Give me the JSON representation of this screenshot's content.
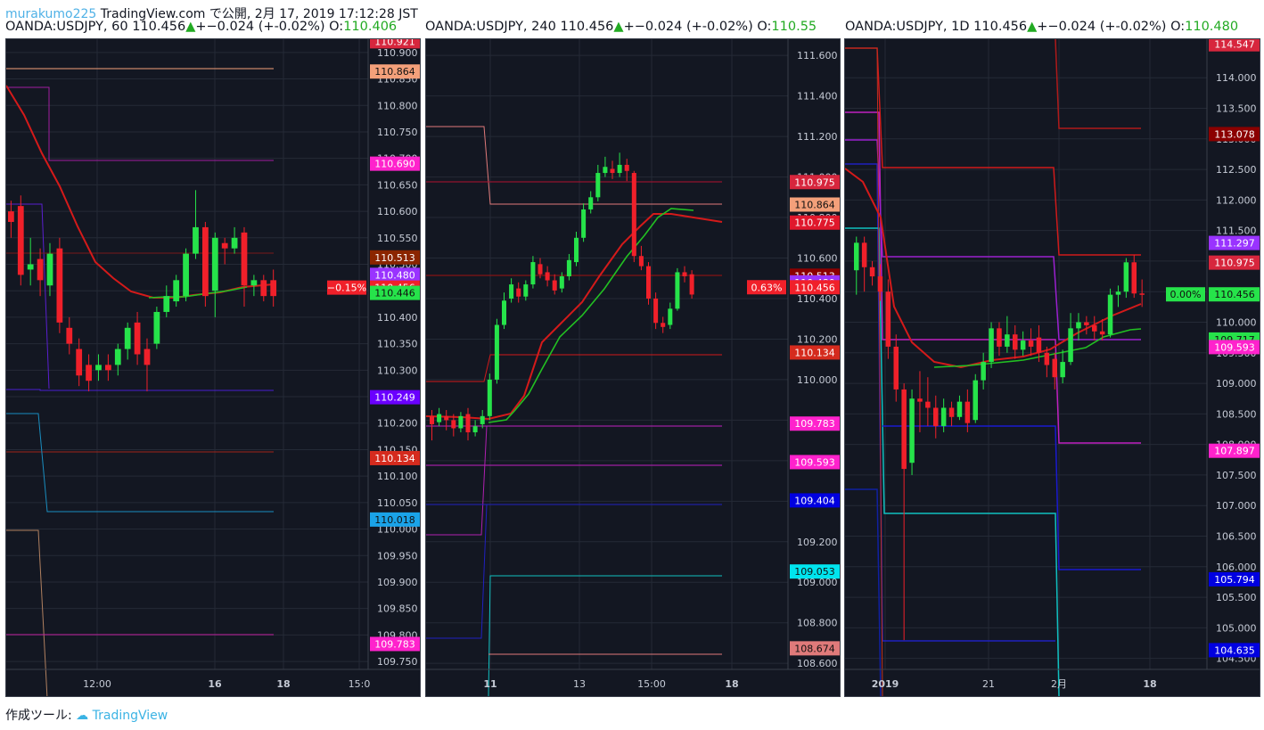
{
  "header": {
    "user": "murakumo225",
    "published": "TradingView.com で公開, 2月 17, 2019 17:12:28 JST"
  },
  "footer": {
    "made_with": "作成ツール:",
    "brand": "TradingView"
  },
  "colors": {
    "bg": "#131722",
    "up": "#26e34a",
    "down": "#f0202a",
    "grid": "#242a36",
    "text": "#c6cbd6"
  },
  "panels": [
    {
      "symbol": "OANDA:USDJPY, 60",
      "price": "110.456",
      "change": "+−0.024 (+-0.02%)",
      "open_label": "O:",
      "open_value": "110.406",
      "x_labels": [
        "12:00",
        "16",
        "18",
        "15:0"
      ],
      "y_ticks": [
        "110.900",
        "110.850",
        "110.800",
        "110.750",
        "110.700",
        "110.650",
        "110.600",
        "110.550",
        "110.500",
        "110.450",
        "110.400",
        "110.350",
        "110.300",
        "110.250",
        "110.200",
        "110.150",
        "110.100",
        "110.050",
        "110.000",
        "109.950",
        "109.900",
        "109.850",
        "109.800",
        "109.750"
      ],
      "price_tags": [
        {
          "text": "110.921",
          "color": "#d7263d"
        },
        {
          "text": "110.864",
          "color": "#f4a07a"
        },
        {
          "text": "110.690",
          "color": "#ff22cc"
        },
        {
          "text": "110.513",
          "color": "#8b2500"
        },
        {
          "text": "110.480",
          "color": "#9933ff"
        },
        {
          "text": "110.456",
          "color": "#f0202a"
        },
        {
          "text": "110.446",
          "color": "#26e34a"
        },
        {
          "text": "110.249",
          "color": "#6a00ff"
        },
        {
          "text": "110.134",
          "color": "#d52b1e"
        },
        {
          "text": "110.018",
          "color": "#1aa3e8"
        },
        {
          "text": "109.783",
          "color": "#ff22cc"
        }
      ],
      "pct_tag": "−0.15%",
      "candles": [
        {
          "o": 110.6,
          "c": 110.58,
          "h": 110.62,
          "l": 110.55
        },
        {
          "o": 110.61,
          "c": 110.48,
          "h": 110.63,
          "l": 110.46
        },
        {
          "o": 110.49,
          "c": 110.5,
          "h": 110.55,
          "l": 110.46
        },
        {
          "o": 110.51,
          "c": 110.47,
          "h": 110.53,
          "l": 110.44
        },
        {
          "o": 110.46,
          "c": 110.52,
          "h": 110.54,
          "l": 110.44
        },
        {
          "o": 110.53,
          "c": 110.39,
          "h": 110.55,
          "l": 110.37
        },
        {
          "o": 110.38,
          "c": 110.35,
          "h": 110.4,
          "l": 110.33
        },
        {
          "o": 110.34,
          "c": 110.29,
          "h": 110.36,
          "l": 110.27
        },
        {
          "o": 110.31,
          "c": 110.28,
          "h": 110.33,
          "l": 110.26
        },
        {
          "o": 110.3,
          "c": 110.31,
          "h": 110.33,
          "l": 110.28
        },
        {
          "o": 110.31,
          "c": 110.3,
          "h": 110.33,
          "l": 110.28
        },
        {
          "o": 110.31,
          "c": 110.34,
          "h": 110.35,
          "l": 110.29
        },
        {
          "o": 110.34,
          "c": 110.38,
          "h": 110.39,
          "l": 110.32
        },
        {
          "o": 110.39,
          "c": 110.33,
          "h": 110.41,
          "l": 110.31
        },
        {
          "o": 110.34,
          "c": 110.31,
          "h": 110.36,
          "l": 110.26
        },
        {
          "o": 110.35,
          "c": 110.41,
          "h": 110.42,
          "l": 110.34
        },
        {
          "o": 110.41,
          "c": 110.44,
          "h": 110.46,
          "l": 110.4
        },
        {
          "o": 110.43,
          "c": 110.47,
          "h": 110.48,
          "l": 110.42
        },
        {
          "o": 110.44,
          "c": 110.52,
          "h": 110.53,
          "l": 110.43
        },
        {
          "o": 110.52,
          "c": 110.57,
          "h": 110.64,
          "l": 110.51
        },
        {
          "o": 110.57,
          "c": 110.44,
          "h": 110.58,
          "l": 110.42
        },
        {
          "o": 110.45,
          "c": 110.55,
          "h": 110.56,
          "l": 110.4
        },
        {
          "o": 110.54,
          "c": 110.53,
          "h": 110.55,
          "l": 110.5
        },
        {
          "o": 110.53,
          "c": 110.55,
          "h": 110.57,
          "l": 110.52
        },
        {
          "o": 110.56,
          "c": 110.46,
          "h": 110.57,
          "l": 110.42
        },
        {
          "o": 110.46,
          "c": 110.47,
          "h": 110.48,
          "l": 110.44
        },
        {
          "o": 110.47,
          "c": 110.44,
          "h": 110.48,
          "l": 110.43
        },
        {
          "o": 110.47,
          "c": 110.44,
          "h": 110.49,
          "l": 110.42
        }
      ]
    },
    {
      "symbol": "OANDA:USDJPY, 240",
      "price": "110.456",
      "change": "+−0.024 (+-0.02%)",
      "open_label": "O:",
      "open_value": "110.55",
      "x_labels": [
        "11",
        "13",
        "15:00",
        "18"
      ],
      "y_ticks": [
        "111.600",
        "111.400",
        "111.200",
        "111.000",
        "110.800",
        "110.600",
        "110.400",
        "110.200",
        "110.000",
        "109.800",
        "109.600",
        "109.400",
        "109.200",
        "109.000",
        "108.800",
        "108.600"
      ],
      "price_tags": [
        {
          "text": "110.975",
          "color": "#d7263d"
        },
        {
          "text": "110.864",
          "color": "#f4a07a"
        },
        {
          "text": "110.775",
          "color": "#e0182c"
        },
        {
          "text": "110.513",
          "color": "#8b0000"
        },
        {
          "text": "110.480",
          "color": "#9933ff"
        },
        {
          "text": "110.456",
          "color": "#f0202a"
        },
        {
          "text": "110.134",
          "color": "#d52b1e"
        },
        {
          "text": "109.783",
          "color": "#ff22cc"
        },
        {
          "text": "109.593",
          "color": "#ff22cc"
        },
        {
          "text": "109.404",
          "color": "#0000e0"
        },
        {
          "text": "109.053",
          "color": "#00e5ee"
        },
        {
          "text": "108.674",
          "color": "#e07a7a"
        }
      ],
      "pct_tag": "0.63%",
      "candles": [
        {
          "o": 109.82,
          "c": 109.78,
          "h": 109.85,
          "l": 109.7
        },
        {
          "o": 109.79,
          "c": 109.83,
          "h": 109.86,
          "l": 109.77
        },
        {
          "o": 109.82,
          "c": 109.8,
          "h": 109.85,
          "l": 109.75
        },
        {
          "o": 109.8,
          "c": 109.76,
          "h": 109.83,
          "l": 109.72
        },
        {
          "o": 109.76,
          "c": 109.82,
          "h": 109.84,
          "l": 109.74
        },
        {
          "o": 109.83,
          "c": 109.74,
          "h": 109.86,
          "l": 109.7
        },
        {
          "o": 109.74,
          "c": 109.77,
          "h": 109.8,
          "l": 109.72
        },
        {
          "o": 109.78,
          "c": 109.82,
          "h": 109.85,
          "l": 109.76
        },
        {
          "o": 109.82,
          "c": 110.0,
          "h": 110.03,
          "l": 109.8
        },
        {
          "o": 110.0,
          "c": 110.27,
          "h": 110.3,
          "l": 109.98
        },
        {
          "o": 110.27,
          "c": 110.39,
          "h": 110.43,
          "l": 110.25
        },
        {
          "o": 110.4,
          "c": 110.47,
          "h": 110.5,
          "l": 110.38
        },
        {
          "o": 110.45,
          "c": 110.41,
          "h": 110.48,
          "l": 110.38
        },
        {
          "o": 110.41,
          "c": 110.47,
          "h": 110.49,
          "l": 110.39
        },
        {
          "o": 110.47,
          "c": 110.58,
          "h": 110.61,
          "l": 110.45
        },
        {
          "o": 110.57,
          "c": 110.52,
          "h": 110.6,
          "l": 110.5
        },
        {
          "o": 110.53,
          "c": 110.49,
          "h": 110.56,
          "l": 110.46
        },
        {
          "o": 110.49,
          "c": 110.44,
          "h": 110.52,
          "l": 110.42
        },
        {
          "o": 110.45,
          "c": 110.51,
          "h": 110.53,
          "l": 110.43
        },
        {
          "o": 110.51,
          "c": 110.59,
          "h": 110.62,
          "l": 110.49
        },
        {
          "o": 110.58,
          "c": 110.7,
          "h": 110.73,
          "l": 110.56
        },
        {
          "o": 110.7,
          "c": 110.84,
          "h": 110.87,
          "l": 110.68
        },
        {
          "o": 110.84,
          "c": 110.9,
          "h": 110.93,
          "l": 110.82
        },
        {
          "o": 110.9,
          "c": 111.02,
          "h": 111.06,
          "l": 110.88
        },
        {
          "o": 111.02,
          "c": 111.05,
          "h": 111.1,
          "l": 111.0
        },
        {
          "o": 111.04,
          "c": 111.02,
          "h": 111.08,
          "l": 110.99
        },
        {
          "o": 111.02,
          "c": 111.06,
          "h": 111.12,
          "l": 111.0
        },
        {
          "o": 111.06,
          "c": 111.03,
          "h": 111.09,
          "l": 110.98
        },
        {
          "o": 111.02,
          "c": 110.61,
          "h": 111.03,
          "l": 110.58
        },
        {
          "o": 110.61,
          "c": 110.56,
          "h": 110.66,
          "l": 110.54
        },
        {
          "o": 110.56,
          "c": 110.4,
          "h": 110.58,
          "l": 110.37
        },
        {
          "o": 110.4,
          "c": 110.28,
          "h": 110.43,
          "l": 110.25
        },
        {
          "o": 110.28,
          "c": 110.26,
          "h": 110.31,
          "l": 110.23
        },
        {
          "o": 110.27,
          "c": 110.35,
          "h": 110.38,
          "l": 110.25
        },
        {
          "o": 110.35,
          "c": 110.53,
          "h": 110.55,
          "l": 110.34
        },
        {
          "o": 110.53,
          "c": 110.51,
          "h": 110.56,
          "l": 110.48
        },
        {
          "o": 110.52,
          "c": 110.42,
          "h": 110.54,
          "l": 110.4
        }
      ]
    },
    {
      "symbol": "OANDA:USDJPY, 1D",
      "price": "110.456",
      "change": "+−0.024 (+-0.02%)",
      "open_label": "O:",
      "open_value": "110.480",
      "x_labels": [
        "2019",
        "21",
        "2月",
        "18"
      ],
      "y_ticks": [
        "114.000",
        "113.500",
        "113.000",
        "112.500",
        "112.000",
        "111.500",
        "111.000",
        "110.500",
        "110.000",
        "109.500",
        "109.000",
        "108.500",
        "108.000",
        "107.500",
        "107.000",
        "106.500",
        "106.000",
        "105.500",
        "105.000",
        "104.500"
      ],
      "price_tags": [
        {
          "text": "114.547",
          "color": "#d7263d"
        },
        {
          "text": "113.078",
          "color": "#8b0000"
        },
        {
          "text": "111.297",
          "color": "#9933ff"
        },
        {
          "text": "110.975",
          "color": "#d7263d"
        },
        {
          "text": "110.456",
          "color": "#26e34a"
        },
        {
          "text": "109.717",
          "color": "#26e34a"
        },
        {
          "text": "109.593",
          "color": "#ff22cc"
        },
        {
          "text": "107.897",
          "color": "#ff22cc"
        },
        {
          "text": "105.794",
          "color": "#0000e0"
        },
        {
          "text": "104.635",
          "color": "#0000e0"
        }
      ],
      "pct_tag": "0.00%",
      "candles": [
        {
          "o": 110.85,
          "c": 111.3,
          "h": 111.4,
          "l": 110.45
        },
        {
          "o": 111.3,
          "c": 110.9,
          "h": 111.4,
          "l": 110.5
        },
        {
          "o": 110.9,
          "c": 110.75,
          "h": 111.0,
          "l": 110.6
        },
        {
          "o": 110.75,
          "c": 110.5,
          "h": 110.95,
          "l": 110.35
        },
        {
          "o": 110.5,
          "c": 109.6,
          "h": 110.7,
          "l": 109.4
        },
        {
          "o": 109.6,
          "c": 108.9,
          "h": 109.8,
          "l": 108.7
        },
        {
          "o": 108.9,
          "c": 107.6,
          "h": 109.0,
          "l": 104.8
        },
        {
          "o": 107.7,
          "c": 108.75,
          "h": 108.9,
          "l": 107.5
        },
        {
          "o": 108.75,
          "c": 108.7,
          "h": 109.2,
          "l": 108.2
        },
        {
          "o": 108.7,
          "c": 108.6,
          "h": 109.1,
          "l": 108.3
        },
        {
          "o": 108.6,
          "c": 108.3,
          "h": 108.8,
          "l": 108.1
        },
        {
          "o": 108.3,
          "c": 108.6,
          "h": 108.75,
          "l": 108.2
        },
        {
          "o": 108.6,
          "c": 108.45,
          "h": 108.7,
          "l": 108.3
        },
        {
          "o": 108.45,
          "c": 108.7,
          "h": 108.8,
          "l": 108.4
        },
        {
          "o": 108.7,
          "c": 108.35,
          "h": 108.9,
          "l": 108.2
        },
        {
          "o": 108.4,
          "c": 109.05,
          "h": 109.15,
          "l": 108.35
        },
        {
          "o": 109.05,
          "c": 109.35,
          "h": 109.5,
          "l": 108.9
        },
        {
          "o": 109.35,
          "c": 109.9,
          "h": 110.0,
          "l": 109.25
        },
        {
          "o": 109.9,
          "c": 109.6,
          "h": 110.0,
          "l": 109.45
        },
        {
          "o": 109.6,
          "c": 109.8,
          "h": 110.1,
          "l": 109.5
        },
        {
          "o": 109.8,
          "c": 109.55,
          "h": 109.95,
          "l": 109.4
        },
        {
          "o": 109.55,
          "c": 109.7,
          "h": 109.85,
          "l": 109.45
        },
        {
          "o": 109.7,
          "c": 109.6,
          "h": 109.9,
          "l": 109.45
        },
        {
          "o": 109.75,
          "c": 109.5,
          "h": 109.95,
          "l": 109.35
        },
        {
          "o": 109.5,
          "c": 109.3,
          "h": 109.6,
          "l": 109.1
        },
        {
          "o": 109.4,
          "c": 109.1,
          "h": 109.5,
          "l": 108.9
        },
        {
          "o": 109.1,
          "c": 109.35,
          "h": 109.55,
          "l": 109.0
        },
        {
          "o": 109.35,
          "c": 109.9,
          "h": 110.15,
          "l": 109.3
        },
        {
          "o": 109.9,
          "c": 110.0,
          "h": 110.15,
          "l": 109.7
        },
        {
          "o": 110.0,
          "c": 109.95,
          "h": 110.1,
          "l": 109.8
        },
        {
          "o": 109.95,
          "c": 109.85,
          "h": 110.1,
          "l": 109.7
        },
        {
          "o": 109.85,
          "c": 109.8,
          "h": 110.05,
          "l": 109.7
        },
        {
          "o": 109.8,
          "c": 110.45,
          "h": 110.55,
          "l": 109.75
        },
        {
          "o": 110.45,
          "c": 110.5,
          "h": 110.6,
          "l": 110.25
        },
        {
          "o": 110.5,
          "c": 110.98,
          "h": 111.05,
          "l": 110.4
        },
        {
          "o": 110.98,
          "c": 110.47,
          "h": 111.1,
          "l": 110.4
        },
        {
          "o": 110.47,
          "c": 110.46,
          "h": 110.7,
          "l": 110.25
        }
      ]
    }
  ]
}
